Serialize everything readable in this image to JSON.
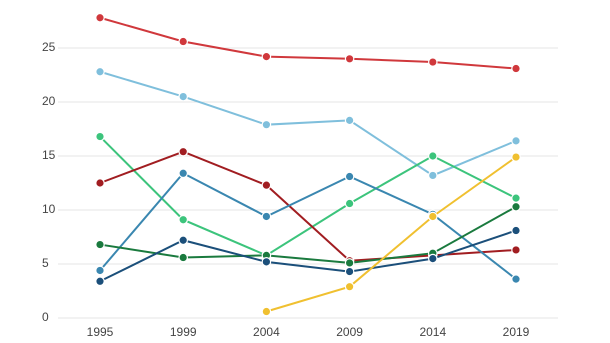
{
  "chart_data": {
    "type": "line",
    "categories": [
      "1995",
      "1999",
      "2004",
      "2009",
      "2014",
      "2019"
    ],
    "series": [
      {
        "color": "#d0383c",
        "values": [
          27.8,
          25.6,
          24.2,
          24.0,
          23.7,
          23.1
        ]
      },
      {
        "color": "#7fbfdc",
        "values": [
          22.8,
          20.5,
          17.9,
          18.3,
          13.2,
          16.4
        ]
      },
      {
        "color": "#3cc47c",
        "values": [
          16.8,
          9.1,
          5.8,
          10.6,
          15.0,
          11.1
        ]
      },
      {
        "color": "#a11d21",
        "values": [
          12.5,
          15.4,
          12.3,
          5.3,
          5.8,
          6.3
        ]
      },
      {
        "color": "#3a87b0",
        "values": [
          4.4,
          13.4,
          9.4,
          13.1,
          9.6,
          3.6
        ]
      },
      {
        "color": "#1a7a3e",
        "values": [
          6.8,
          5.6,
          5.8,
          5.1,
          6.0,
          10.3
        ]
      },
      {
        "color": "#1b4f7a",
        "values": [
          3.4,
          7.2,
          5.2,
          4.3,
          5.5,
          8.1
        ]
      },
      {
        "color": "#f0c030",
        "values": [
          null,
          null,
          0.6,
          2.9,
          9.4,
          14.9
        ]
      }
    ],
    "ylim": [
      0,
      29
    ],
    "yticks": [
      0,
      5,
      10,
      15,
      20,
      25
    ],
    "grid": true
  }
}
